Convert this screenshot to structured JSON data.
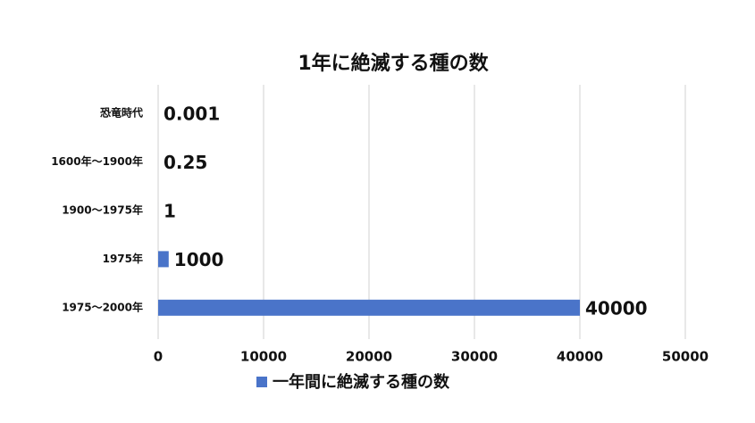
{
  "chart_data": {
    "type": "barh",
    "title": "1年に絶滅する種の数",
    "categories": [
      "恐竜時代",
      "1600年〜1900年",
      "1900〜1975年",
      "1975年",
      "1975〜2000年"
    ],
    "series": [
      {
        "name": "一年間に絶滅する種の数",
        "color": "#4a74c9",
        "values": [
          0.001,
          0.25,
          1,
          1000,
          40000
        ]
      }
    ],
    "xlim": [
      0,
      50000
    ],
    "xticks": [
      0,
      10000,
      20000,
      30000,
      40000,
      50000
    ],
    "grid": true,
    "legend": "bottom"
  }
}
